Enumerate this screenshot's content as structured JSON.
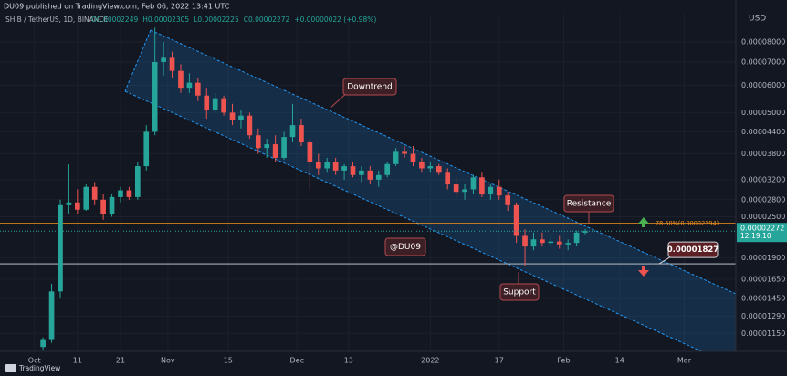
{
  "header": {
    "published": "DU09 published on TradingView.com, Feb 06, 2022 13:41 UTC",
    "currency": "USD",
    "footer": "TradingView"
  },
  "chart_data": {
    "type": "candlestick",
    "title": "SHIB / TetherUS, 1D, BINANCE",
    "legend": [
      "O0.00002249",
      "H0.00002305",
      "L0.00002225",
      "C0.00002272",
      "+0.00000022 (+0.98%)"
    ],
    "x": [
      "2021-10-03",
      "2021-10-05",
      "2021-10-07",
      "2021-10-09",
      "2021-10-11",
      "2021-10-13",
      "2021-10-15",
      "2021-10-17",
      "2021-10-19",
      "2021-10-21",
      "2021-10-23",
      "2021-10-25",
      "2021-10-27",
      "2021-10-29",
      "2021-10-31",
      "2021-11-02",
      "2021-11-04",
      "2021-11-06",
      "2021-11-08",
      "2021-11-10",
      "2021-11-12",
      "2021-11-14",
      "2021-11-16",
      "2021-11-18",
      "2021-11-20",
      "2021-11-22",
      "2021-11-24",
      "2021-11-26",
      "2021-11-28",
      "2021-11-30",
      "2021-12-02",
      "2021-12-04",
      "2021-12-06",
      "2021-12-08",
      "2021-12-10",
      "2021-12-12",
      "2021-12-14",
      "2021-12-16",
      "2021-12-18",
      "2021-12-20",
      "2021-12-22",
      "2021-12-24",
      "2021-12-26",
      "2021-12-28",
      "2021-12-30",
      "2022-01-01",
      "2022-01-03",
      "2022-01-05",
      "2022-01-07",
      "2022-01-09",
      "2022-01-11",
      "2022-01-13",
      "2022-01-15",
      "2022-01-17",
      "2022-01-19",
      "2022-01-21",
      "2022-01-23",
      "2022-01-25",
      "2022-01-27",
      "2022-01-29",
      "2022-01-31",
      "2022-02-02",
      "2022-02-04",
      "2022-02-06"
    ],
    "open": [
      1.05e-05,
      1.1e-05,
      1.52e-05,
      2.7e-05,
      2.75e-05,
      2.62e-05,
      3.05e-05,
      2.8e-05,
      2.55e-05,
      2.85e-05,
      2.98e-05,
      2.85e-05,
      3.5e-05,
      4.4e-05,
      7e-05,
      7.2e-05,
      6.6e-05,
      5.9e-05,
      6.1e-05,
      5.6e-05,
      5.1e-05,
      5.5e-05,
      5e-05,
      4.75e-05,
      4.9e-05,
      4.3e-05,
      3.95e-05,
      4.05e-05,
      3.7e-05,
      4.25e-05,
      4.6e-05,
      4.1e-05,
      3.6e-05,
      3.45e-05,
      3.6e-05,
      3.4e-05,
      3.5e-05,
      3.3e-05,
      3.4e-05,
      3.2e-05,
      3.3e-05,
      3.55e-05,
      3.85e-05,
      3.8e-05,
      3.6e-05,
      3.45e-05,
      3.5e-05,
      3.35e-05,
      3.1e-05,
      2.95e-05,
      3e-05,
      3.25e-05,
      2.9e-05,
      3.05e-05,
      2.88e-05,
      2.7e-05,
      2.2e-05,
      2.05e-05,
      2.15e-05,
      2.1e-05,
      2.12e-05,
      2.08e-05,
      2.1e-05,
      2.249e-05
    ],
    "high": [
      1.12e-05,
      1.6e-05,
      2.8e-05,
      3.54e-05,
      3e-05,
      3.1e-05,
      3.15e-05,
      2.9e-05,
      2.9e-05,
      3.05e-05,
      3.05e-05,
      3.6e-05,
      4.6e-05,
      8.8e-05,
      8e-05,
      7.5e-05,
      6.9e-05,
      6.5e-05,
      6.3e-05,
      5.9e-05,
      5.7e-05,
      5.6e-05,
      5.3e-05,
      5.1e-05,
      5e-05,
      4.5e-05,
      4.2e-05,
      4.3e-05,
      4.4e-05,
      5.3e-05,
      4.8e-05,
      4.2e-05,
      3.8e-05,
      3.7e-05,
      3.7e-05,
      3.55e-05,
      3.6e-05,
      3.5e-05,
      3.5e-05,
      3.4e-05,
      3.6e-05,
      3.95e-05,
      4e-05,
      4e-05,
      3.7e-05,
      3.6e-05,
      3.55e-05,
      3.45e-05,
      3.25e-05,
      3.1e-05,
      3.3e-05,
      3.35e-05,
      3.1e-05,
      3.2e-05,
      2.95e-05,
      2.75e-05,
      2.3e-05,
      2.25e-05,
      2.25e-05,
      2.2e-05,
      2.2e-05,
      2.15e-05,
      2.28e-05,
      2.305e-05
    ],
    "low": [
      1.03e-05,
      1.08e-05,
      1.45e-05,
      2.55e-05,
      2.55e-05,
      2.6e-05,
      2.7e-05,
      2.45e-05,
      2.5e-05,
      2.75e-05,
      2.8e-05,
      2.8e-05,
      3.4e-05,
      4.3e-05,
      6.4e-05,
      6.3e-05,
      5.7e-05,
      5.7e-05,
      5.4e-05,
      4.8e-05,
      5e-05,
      4.9e-05,
      4.6e-05,
      4.5e-05,
      4.2e-05,
      3.8e-05,
      3.7e-05,
      3.6e-05,
      3.65e-05,
      4.1e-05,
      4e-05,
      3e-05,
      3.3e-05,
      3.35e-05,
      3.3e-05,
      3.2e-05,
      3.25e-05,
      3.15e-05,
      3.1e-05,
      3.05e-05,
      3.25e-05,
      3.5e-05,
      3.7e-05,
      3.5e-05,
      3.35e-05,
      3.35e-05,
      3.3e-05,
      3e-05,
      2.85e-05,
      2.8e-05,
      2.9e-05,
      2.85e-05,
      2.8e-05,
      2.8e-05,
      2.6e-05,
      2.1e-05,
      1.8e-05,
      2e-05,
      2.05e-05,
      2.05e-05,
      2.02e-05,
      2e-05,
      2.05e-05,
      2.225e-05
    ],
    "close": [
      1.1e-05,
      1.52e-05,
      2.7e-05,
      2.75e-05,
      2.62e-05,
      3.05e-05,
      2.8e-05,
      2.55e-05,
      2.85e-05,
      2.98e-05,
      2.85e-05,
      3.5e-05,
      4.4e-05,
      7e-05,
      7.2e-05,
      6.6e-05,
      5.9e-05,
      6.1e-05,
      5.6e-05,
      5.1e-05,
      5.5e-05,
      5e-05,
      4.75e-05,
      4.9e-05,
      4.3e-05,
      3.95e-05,
      4.05e-05,
      3.7e-05,
      4.25e-05,
      4.6e-05,
      4.1e-05,
      3.6e-05,
      3.45e-05,
      3.6e-05,
      3.4e-05,
      3.5e-05,
      3.3e-05,
      3.4e-05,
      3.2e-05,
      3.3e-05,
      3.55e-05,
      3.85e-05,
      3.8e-05,
      3.6e-05,
      3.45e-05,
      3.5e-05,
      3.35e-05,
      3.1e-05,
      2.95e-05,
      3e-05,
      3.25e-05,
      2.9e-05,
      3.05e-05,
      2.88e-05,
      2.7e-05,
      2.2e-05,
      2.05e-05,
      2.15e-05,
      2.1e-05,
      2.12e-05,
      2.08e-05,
      2.1e-05,
      2.25e-05,
      2.272e-05
    ],
    "up_color": "#26a69a",
    "down_color": "#ef5350",
    "log_scale": true,
    "grid": true,
    "xlim": [
      "2021-09-23",
      "2022-03-13"
    ],
    "xticks": [
      {
        "value": "2021-10-01",
        "label": "Oct"
      },
      {
        "value": "2021-10-11",
        "label": "11"
      },
      {
        "value": "2021-10-21",
        "label": "21"
      },
      {
        "value": "2021-11-01",
        "label": "Nov"
      },
      {
        "value": "2021-11-15",
        "label": "15"
      },
      {
        "value": "2021-12-01",
        "label": "Dec"
      },
      {
        "value": "2021-12-13",
        "label": "13"
      },
      {
        "value": "2022-01-01",
        "label": "2022"
      },
      {
        "value": "2022-01-17",
        "label": "17"
      },
      {
        "value": "2022-02-01",
        "label": "Feb"
      },
      {
        "value": "2022-02-14",
        "label": "14"
      },
      {
        "value": "2022-03-01",
        "label": "Mar"
      }
    ],
    "ylim": [
      1.02e-05,
      9.66e-05
    ],
    "yticks": [
      {
        "value": 8e-05,
        "label": "0.00008000"
      },
      {
        "value": 7e-05,
        "label": "0.00007000"
      },
      {
        "value": 6e-05,
        "label": "0.00006000"
      },
      {
        "value": 5e-05,
        "label": "0.00005000"
      },
      {
        "value": 4.4e-05,
        "label": "0.00004400"
      },
      {
        "value": 3.8e-05,
        "label": "0.00003800"
      },
      {
        "value": 3.2e-05,
        "label": "0.00003200"
      },
      {
        "value": 2.8e-05,
        "label": "0.00002800"
      },
      {
        "value": 2.5e-05,
        "label": "0.00002500"
      },
      {
        "value": 1.9e-05,
        "label": "0.00001900"
      },
      {
        "value": 1.65e-05,
        "label": "0.00001650"
      },
      {
        "value": 1.45e-05,
        "label": "0.00001450"
      },
      {
        "value": 1.29e-05,
        "label": "0.00001290"
      },
      {
        "value": 1.15e-05,
        "label": "0.00001150"
      }
    ],
    "fib_level": {
      "value": 2.394e-05,
      "label": "78.60%(0.00002394)",
      "color": "#f7931a"
    },
    "support_level": {
      "value": 1.827e-05,
      "label": "0.00001827"
    },
    "last_price": {
      "value": 2.272e-05,
      "label": "0.00002272",
      "countdown": "12:19:10"
    },
    "annotations": {
      "downtrend": "Downtrend",
      "resistance": "Resistance",
      "support": "Support",
      "author": "@DU09"
    }
  }
}
